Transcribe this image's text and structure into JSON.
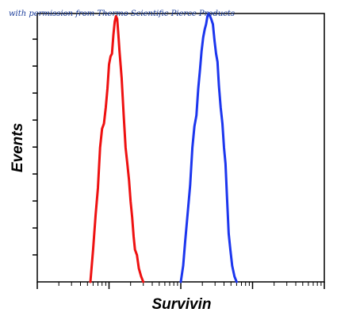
{
  "watermark": "with permission from Thermo Scientific Pierce Products",
  "chart_data": {
    "type": "line",
    "title": "",
    "xlabel": "Survivin",
    "ylabel": "Events",
    "x_scale": "log",
    "xlim": [
      1,
      10000
    ],
    "ylim": [
      0,
      100
    ],
    "x_tick_decades": [
      1,
      10,
      100,
      1000,
      10000
    ],
    "y_tick_count": 9,
    "grid": false,
    "legend": "none",
    "series": [
      {
        "color": "#ee1111",
        "x": [
          5.5,
          6.0,
          6.5,
          7.0,
          7.5,
          8.0,
          8.5,
          9.0,
          9.5,
          10.0,
          10.5,
          11.0,
          11.5,
          12.0,
          12.5,
          13.0,
          13.5,
          14.0,
          15.0,
          16.0,
          17.0,
          18.0,
          19.0,
          20.0,
          21.0,
          22.0,
          23.0,
          24.5,
          26.0,
          28.0,
          30.0
        ],
        "y": [
          0,
          12,
          25,
          35,
          50,
          57,
          59,
          65,
          72,
          81,
          84,
          85,
          92,
          97,
          99,
          98,
          92,
          86,
          76,
          62,
          50,
          44,
          38,
          30,
          24,
          17,
          12,
          10,
          5,
          2,
          0
        ]
      },
      {
        "color": "#1c36ee",
        "x": [
          100,
          108,
          115,
          125,
          135,
          145,
          155,
          165,
          175,
          185,
          195,
          205,
          215,
          225,
          235,
          245,
          255,
          265,
          280,
          295,
          310,
          325,
          340,
          360,
          380,
          400,
          420,
          440,
          465,
          490,
          520,
          560,
          600
        ],
        "y": [
          0,
          6,
          15,
          26,
          36,
          50,
          58,
          62,
          72,
          79,
          86,
          91,
          94,
          96,
          99,
          100,
          99,
          98,
          96,
          90,
          85,
          82,
          73,
          65,
          59,
          50,
          44,
          32,
          18,
          12,
          6,
          2,
          0
        ]
      }
    ]
  }
}
